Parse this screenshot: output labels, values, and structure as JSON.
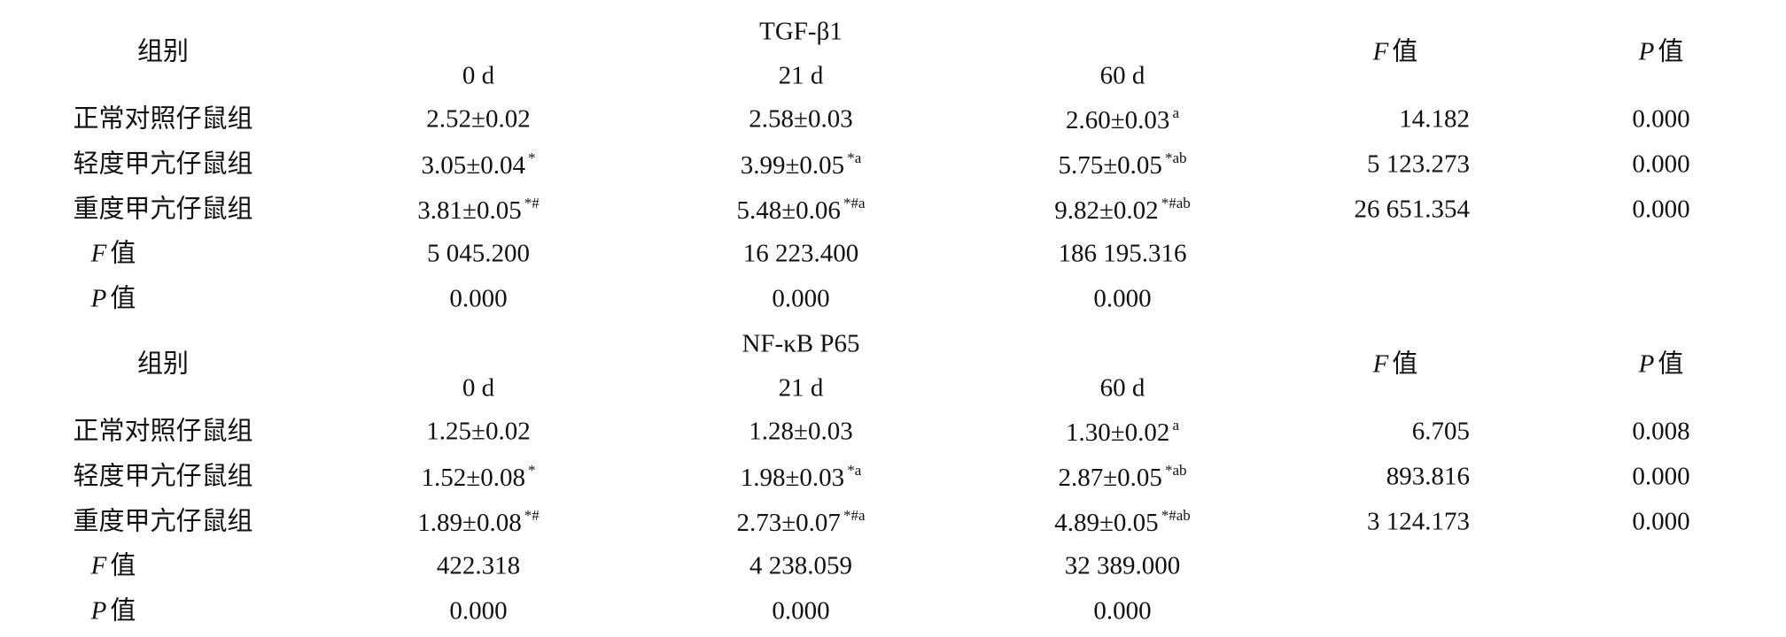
{
  "sections": [
    {
      "group_header": "组别",
      "marker": "TGF-β1",
      "time_points": [
        "0 d",
        "21 d",
        "60 d"
      ],
      "f_header": {
        "symbol": "F",
        "suffix": "值"
      },
      "p_header": {
        "symbol": "P",
        "suffix": "值"
      },
      "rows": [
        {
          "group": "正常对照仔鼠组",
          "cells": [
            {
              "value": "2.52±0.02"
            },
            {
              "value": "2.58±0.03"
            },
            {
              "value": "2.60±0.03",
              "mark": "a"
            }
          ],
          "f": "14.182",
          "p": "0.000"
        },
        {
          "group": "轻度甲亢仔鼠组",
          "cells": [
            {
              "value": "3.05±0.04",
              "mark": "*"
            },
            {
              "value": "3.99±0.05",
              "mark": "*a"
            },
            {
              "value": "5.75±0.05",
              "mark": "*ab"
            }
          ],
          "f": "5 123.273",
          "p": "0.000"
        },
        {
          "group": "重度甲亢仔鼠组",
          "cells": [
            {
              "value": "3.81±0.05",
              "mark": "*#"
            },
            {
              "value": "5.48±0.06",
              "mark": "*#a"
            },
            {
              "value": "9.82±0.02",
              "mark": "*#ab"
            }
          ],
          "f": "26 651.354",
          "p": "0.000"
        }
      ],
      "f_row": {
        "label": {
          "symbol": "F",
          "suffix": "值"
        },
        "values": [
          "5 045.200",
          "16 223.400",
          "186 195.316"
        ]
      },
      "p_row": {
        "label": {
          "symbol": "P",
          "suffix": "值"
        },
        "values": [
          "0.000",
          "0.000",
          "0.000"
        ]
      }
    },
    {
      "group_header": "组别",
      "marker": "NF-κB P65",
      "time_points": [
        "0 d",
        "21 d",
        "60 d"
      ],
      "f_header": {
        "symbol": "F",
        "suffix": "值"
      },
      "p_header": {
        "symbol": "P",
        "suffix": "值"
      },
      "rows": [
        {
          "group": "正常对照仔鼠组",
          "cells": [
            {
              "value": "1.25±0.02"
            },
            {
              "value": "1.28±0.03"
            },
            {
              "value": "1.30±0.02",
              "mark": "a"
            }
          ],
          "f": "6.705",
          "p": "0.008"
        },
        {
          "group": "轻度甲亢仔鼠组",
          "cells": [
            {
              "value": "1.52±0.08",
              "mark": "*"
            },
            {
              "value": "1.98±0.03",
              "mark": "*a"
            },
            {
              "value": "2.87±0.05",
              "mark": "*ab"
            }
          ],
          "f": "893.816",
          "p": "0.000"
        },
        {
          "group": "重度甲亢仔鼠组",
          "cells": [
            {
              "value": "1.89±0.08",
              "mark": "*#"
            },
            {
              "value": "2.73±0.07",
              "mark": "*#a"
            },
            {
              "value": "4.89±0.05",
              "mark": "*#ab"
            }
          ],
          "f": "3 124.173",
          "p": "0.000"
        }
      ],
      "f_row": {
        "label": {
          "symbol": "F",
          "suffix": "值"
        },
        "values": [
          "422.318",
          "4 238.059",
          "32 389.000"
        ]
      },
      "p_row": {
        "label": {
          "symbol": "P",
          "suffix": "值"
        },
        "values": [
          "0.000",
          "0.000",
          "0.000"
        ]
      }
    }
  ]
}
